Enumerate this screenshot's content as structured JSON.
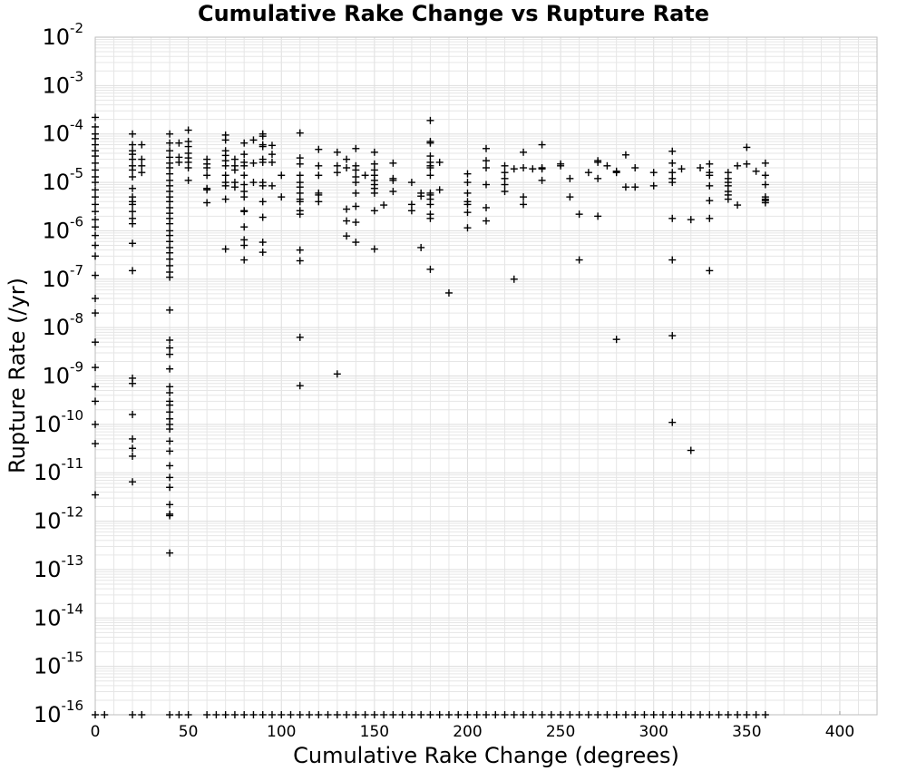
{
  "chart_data": {
    "type": "scatter",
    "title": "Cumulative Rake Change vs Rupture Rate",
    "xlabel": "Cumulative Rake Change (degrees)",
    "ylabel": "Rupture Rate (/yr)",
    "xlim": [
      0,
      420
    ],
    "ylim": [
      1e-16,
      0.01
    ],
    "y_scale": "log",
    "grid": true,
    "legend": "none",
    "marker": "plus",
    "x_ticks": [
      0,
      50,
      100,
      150,
      200,
      250,
      300,
      350,
      400
    ],
    "y_ticks": [
      {
        "base": "10",
        "exp": "-2"
      },
      {
        "base": "10",
        "exp": "-3"
      },
      {
        "base": "10",
        "exp": "-4"
      },
      {
        "base": "10",
        "exp": "-5"
      },
      {
        "base": "10",
        "exp": "-6"
      },
      {
        "base": "10",
        "exp": "-7"
      },
      {
        "base": "10",
        "exp": "-8"
      },
      {
        "base": "10",
        "exp": "-9"
      },
      {
        "base": "10",
        "exp": "-10"
      },
      {
        "base": "10",
        "exp": "-11"
      },
      {
        "base": "10",
        "exp": "-12"
      },
      {
        "base": "10",
        "exp": "-13"
      },
      {
        "base": "10",
        "exp": "-14"
      },
      {
        "base": "10",
        "exp": "-15"
      },
      {
        "base": "10",
        "exp": "-16"
      }
    ],
    "points": [
      [
        0,
        0.00022
      ],
      [
        0,
        0.00014
      ],
      [
        0,
        0.0001
      ],
      [
        0,
        8e-05
      ],
      [
        0,
        6e-05
      ],
      [
        0,
        4.5e-05
      ],
      [
        0,
        3.5e-05
      ],
      [
        0,
        2.5e-05
      ],
      [
        0,
        1.8e-05
      ],
      [
        0,
        1.3e-05
      ],
      [
        0,
        1e-05
      ],
      [
        0,
        7e-06
      ],
      [
        0,
        5e-06
      ],
      [
        0,
        3.5e-06
      ],
      [
        0,
        2.5e-06
      ],
      [
        0,
        1.7e-06
      ],
      [
        0,
        1.2e-06
      ],
      [
        0,
        8e-07
      ],
      [
        0,
        5e-07
      ],
      [
        0,
        3e-07
      ],
      [
        0,
        1.2e-07
      ],
      [
        0,
        4e-08
      ],
      [
        0,
        2e-08
      ],
      [
        0,
        5e-09
      ],
      [
        0,
        1.5e-09
      ],
      [
        0,
        6e-10
      ],
      [
        0,
        3e-10
      ],
      [
        0,
        1e-10
      ],
      [
        0,
        4e-11
      ],
      [
        0,
        3.5e-12
      ],
      [
        20,
        0.0001
      ],
      [
        20,
        6e-05
      ],
      [
        20,
        4.5e-05
      ],
      [
        20,
        3.8e-05
      ],
      [
        20,
        3e-05
      ],
      [
        20,
        2.2e-05
      ],
      [
        20,
        1.8e-05
      ],
      [
        20,
        1.3e-05
      ],
      [
        20,
        7.5e-06
      ],
      [
        20,
        5e-06
      ],
      [
        20,
        4e-06
      ],
      [
        20,
        3.5e-06
      ],
      [
        20,
        2.5e-06
      ],
      [
        20,
        1.8e-06
      ],
      [
        20,
        1.4e-06
      ],
      [
        20,
        5.5e-07
      ],
      [
        20,
        1.5e-07
      ],
      [
        20,
        9e-10
      ],
      [
        20,
        7e-10
      ],
      [
        20,
        1.6e-10
      ],
      [
        20,
        5e-11
      ],
      [
        20,
        3.2e-11
      ],
      [
        20,
        2.2e-11
      ],
      [
        20,
        6.5e-12
      ],
      [
        25,
        6e-05
      ],
      [
        25,
        3e-05
      ],
      [
        25,
        2.2e-05
      ],
      [
        25,
        1.6e-05
      ],
      [
        40,
        0.0001
      ],
      [
        40,
        6.5e-05
      ],
      [
        40,
        4.5e-05
      ],
      [
        40,
        3.3e-05
      ],
      [
        40,
        2.5e-05
      ],
      [
        40,
        2e-05
      ],
      [
        40,
        1.5e-05
      ],
      [
        40,
        1.1e-05
      ],
      [
        40,
        8.5e-06
      ],
      [
        40,
        6.5e-06
      ],
      [
        40,
        5e-06
      ],
      [
        40,
        4e-06
      ],
      [
        40,
        3e-06
      ],
      [
        40,
        2.3e-06
      ],
      [
        40,
        1.8e-06
      ],
      [
        40,
        1.4e-06
      ],
      [
        40,
        1e-06
      ],
      [
        40,
        8e-07
      ],
      [
        40,
        6e-07
      ],
      [
        40,
        4.5e-07
      ],
      [
        40,
        3.5e-07
      ],
      [
        40,
        2.6e-07
      ],
      [
        40,
        1.9e-07
      ],
      [
        40,
        1.4e-07
      ],
      [
        40,
        1.1e-07
      ],
      [
        40,
        2.3e-08
      ],
      [
        40,
        5.5e-09
      ],
      [
        40,
        3.8e-09
      ],
      [
        40,
        2.8e-09
      ],
      [
        40,
        1.4e-09
      ],
      [
        40,
        6e-10
      ],
      [
        40,
        4.5e-10
      ],
      [
        40,
        3e-10
      ],
      [
        40,
        2.5e-10
      ],
      [
        40,
        1.8e-10
      ],
      [
        40,
        1.3e-10
      ],
      [
        40,
        1e-10
      ],
      [
        40,
        8e-11
      ],
      [
        40,
        4.5e-11
      ],
      [
        40,
        2.8e-11
      ],
      [
        40,
        1.4e-11
      ],
      [
        40,
        8e-12
      ],
      [
        40,
        5e-12
      ],
      [
        40,
        2.2e-12
      ],
      [
        40,
        1.4e-12
      ],
      [
        40,
        1.3e-12
      ],
      [
        40,
        2.2e-13
      ],
      [
        45,
        6.5e-05
      ],
      [
        45,
        3.3e-05
      ],
      [
        45,
        2.6e-05
      ],
      [
        50,
        0.00012
      ],
      [
        50,
        7e-05
      ],
      [
        50,
        5.5e-05
      ],
      [
        50,
        4e-05
      ],
      [
        50,
        3.2e-05
      ],
      [
        50,
        2.6e-05
      ],
      [
        50,
        2e-05
      ],
      [
        50,
        1.1e-05
      ],
      [
        60,
        3e-05
      ],
      [
        60,
        2.4e-05
      ],
      [
        60,
        2e-05
      ],
      [
        60,
        1.4e-05
      ],
      [
        60,
        7.5e-06
      ],
      [
        60,
        7e-06
      ],
      [
        60,
        3.8e-06
      ],
      [
        70,
        9.5e-05
      ],
      [
        70,
        7.5e-05
      ],
      [
        70,
        4.5e-05
      ],
      [
        70,
        3.6e-05
      ],
      [
        70,
        2.8e-05
      ],
      [
        70,
        2.2e-05
      ],
      [
        70,
        1.4e-05
      ],
      [
        70,
        1e-05
      ],
      [
        70,
        8.5e-06
      ],
      [
        70,
        4.5e-06
      ],
      [
        70,
        4.2e-07
      ],
      [
        75,
        3e-05
      ],
      [
        75,
        2.2e-05
      ],
      [
        75,
        1.8e-05
      ],
      [
        75,
        1e-05
      ],
      [
        75,
        8e-06
      ],
      [
        80,
        6.5e-05
      ],
      [
        80,
        3.8e-05
      ],
      [
        80,
        2.6e-05
      ],
      [
        80,
        2.2e-05
      ],
      [
        80,
        1.4e-05
      ],
      [
        80,
        9e-06
      ],
      [
        80,
        6.5e-06
      ],
      [
        80,
        5e-06
      ],
      [
        80,
        2.6e-06
      ],
      [
        80,
        2.5e-06
      ],
      [
        80,
        1.2e-06
      ],
      [
        80,
        6.5e-07
      ],
      [
        80,
        5e-07
      ],
      [
        80,
        2.5e-07
      ],
      [
        85,
        7.5e-05
      ],
      [
        85,
        2.5e-05
      ],
      [
        85,
        1e-05
      ],
      [
        90,
        0.0001
      ],
      [
        90,
        9e-05
      ],
      [
        90,
        6e-05
      ],
      [
        90,
        5.5e-05
      ],
      [
        90,
        3e-05
      ],
      [
        90,
        2.6e-05
      ],
      [
        90,
        1e-05
      ],
      [
        90,
        8.5e-06
      ],
      [
        90,
        4e-06
      ],
      [
        90,
        1.9e-06
      ],
      [
        90,
        5.8e-07
      ],
      [
        90,
        3.6e-07
      ],
      [
        95,
        5.8e-05
      ],
      [
        95,
        3.8e-05
      ],
      [
        95,
        2.6e-05
      ],
      [
        95,
        8.5e-06
      ],
      [
        100,
        1.4e-05
      ],
      [
        100,
        5e-06
      ],
      [
        110,
        0.000105
      ],
      [
        110,
        3.2e-05
      ],
      [
        110,
        2.4e-05
      ],
      [
        110,
        1.4e-05
      ],
      [
        110,
        1e-05
      ],
      [
        110,
        8e-06
      ],
      [
        110,
        6e-06
      ],
      [
        110,
        4.5e-06
      ],
      [
        110,
        4e-06
      ],
      [
        110,
        2.6e-06
      ],
      [
        110,
        2.2e-06
      ],
      [
        110,
        4e-07
      ],
      [
        110,
        2.4e-07
      ],
      [
        110,
        6.3e-09
      ],
      [
        110,
        6.3e-10
      ],
      [
        120,
        4.8e-05
      ],
      [
        120,
        2.2e-05
      ],
      [
        120,
        1.4e-05
      ],
      [
        120,
        6e-06
      ],
      [
        120,
        5.5e-06
      ],
      [
        120,
        4e-06
      ],
      [
        130,
        4.2e-05
      ],
      [
        130,
        2.2e-05
      ],
      [
        130,
        1.6e-05
      ],
      [
        130,
        1.1e-09
      ],
      [
        135,
        3e-05
      ],
      [
        135,
        2e-05
      ],
      [
        135,
        2.8e-06
      ],
      [
        135,
        1.6e-06
      ],
      [
        135,
        7.8e-07
      ],
      [
        140,
        5e-05
      ],
      [
        140,
        2.2e-05
      ],
      [
        140,
        1.8e-05
      ],
      [
        140,
        1.3e-05
      ],
      [
        140,
        1e-05
      ],
      [
        140,
        6e-06
      ],
      [
        140,
        3.2e-06
      ],
      [
        140,
        1.5e-06
      ],
      [
        140,
        5.8e-07
      ],
      [
        145,
        1.4e-05
      ],
      [
        150,
        4.2e-05
      ],
      [
        150,
        2.4e-05
      ],
      [
        150,
        1.8e-05
      ],
      [
        150,
        1.4e-05
      ],
      [
        150,
        1.1e-05
      ],
      [
        150,
        9e-06
      ],
      [
        150,
        7.5e-06
      ],
      [
        150,
        6e-06
      ],
      [
        150,
        2.6e-06
      ],
      [
        150,
        4.2e-07
      ],
      [
        155,
        3.4e-06
      ],
      [
        160,
        2.5e-05
      ],
      [
        160,
        1.2e-05
      ],
      [
        160,
        1.1e-05
      ],
      [
        160,
        6.5e-06
      ],
      [
        170,
        1e-05
      ],
      [
        170,
        3.5e-06
      ],
      [
        170,
        2.6e-06
      ],
      [
        175,
        6e-06
      ],
      [
        175,
        5.2e-06
      ],
      [
        175,
        4.5e-07
      ],
      [
        180,
        0.00019
      ],
      [
        180,
        7e-05
      ],
      [
        180,
        6.5e-05
      ],
      [
        180,
        3.5e-05
      ],
      [
        180,
        2.6e-05
      ],
      [
        180,
        2.2e-05
      ],
      [
        180,
        2e-05
      ],
      [
        180,
        1.4e-05
      ],
      [
        180,
        6e-06
      ],
      [
        180,
        5.5e-06
      ],
      [
        180,
        4.5e-06
      ],
      [
        180,
        3.5e-06
      ],
      [
        180,
        2.2e-06
      ],
      [
        180,
        1.8e-06
      ],
      [
        180,
        1.6e-07
      ],
      [
        185,
        2.6e-05
      ],
      [
        185,
        7e-06
      ],
      [
        190,
        5.2e-08
      ],
      [
        200,
        1.5e-05
      ],
      [
        200,
        1e-05
      ],
      [
        200,
        6e-06
      ],
      [
        200,
        4e-06
      ],
      [
        200,
        3.5e-06
      ],
      [
        200,
        2.4e-06
      ],
      [
        200,
        1.15e-06
      ],
      [
        210,
        5e-05
      ],
      [
        210,
        2.8e-05
      ],
      [
        210,
        2e-05
      ],
      [
        210,
        9e-06
      ],
      [
        210,
        3e-06
      ],
      [
        210,
        1.6e-06
      ],
      [
        220,
        2.2e-05
      ],
      [
        220,
        1.6e-05
      ],
      [
        220,
        1.2e-05
      ],
      [
        220,
        9e-06
      ],
      [
        220,
        6.5e-06
      ],
      [
        225,
        1.9e-05
      ],
      [
        225,
        1e-07
      ],
      [
        230,
        4.2e-05
      ],
      [
        230,
        2e-05
      ],
      [
        230,
        5e-06
      ],
      [
        230,
        3.5e-06
      ],
      [
        235,
        1.9e-05
      ],
      [
        240,
        6e-05
      ],
      [
        240,
        2e-05
      ],
      [
        240,
        1.9e-05
      ],
      [
        240,
        1.1e-05
      ],
      [
        250,
        2.4e-05
      ],
      [
        250,
        2.2e-05
      ],
      [
        255,
        1.2e-05
      ],
      [
        255,
        5e-06
      ],
      [
        260,
        2.2e-06
      ],
      [
        260,
        2.5e-07
      ],
      [
        265,
        1.6e-05
      ],
      [
        270,
        2.8e-05
      ],
      [
        270,
        2.6e-05
      ],
      [
        270,
        1.2e-05
      ],
      [
        270,
        2e-06
      ],
      [
        275,
        2.2e-05
      ],
      [
        280,
        1.7e-05
      ],
      [
        280,
        1.6e-05
      ],
      [
        280,
        5.7e-09
      ],
      [
        285,
        3.7e-05
      ],
      [
        285,
        8e-06
      ],
      [
        290,
        2e-05
      ],
      [
        290,
        8e-06
      ],
      [
        300,
        1.6e-05
      ],
      [
        300,
        8.5e-06
      ],
      [
        310,
        4.4e-05
      ],
      [
        310,
        2.5e-05
      ],
      [
        310,
        1.6e-05
      ],
      [
        310,
        1.2e-05
      ],
      [
        310,
        1e-05
      ],
      [
        310,
        1.8e-06
      ],
      [
        310,
        2.5e-07
      ],
      [
        310,
        6.8e-09
      ],
      [
        310,
        1.1e-10
      ],
      [
        315,
        1.9e-05
      ],
      [
        320,
        1.7e-06
      ],
      [
        320,
        2.9e-11
      ],
      [
        325,
        2e-05
      ],
      [
        330,
        2.4e-05
      ],
      [
        330,
        1.6e-05
      ],
      [
        330,
        1.4e-05
      ],
      [
        330,
        8.5e-06
      ],
      [
        330,
        4.2e-06
      ],
      [
        330,
        1.8e-06
      ],
      [
        330,
        1.5e-07
      ],
      [
        340,
        1.6e-05
      ],
      [
        340,
        1.2e-05
      ],
      [
        340,
        1e-05
      ],
      [
        340,
        8.5e-06
      ],
      [
        340,
        6.5e-06
      ],
      [
        340,
        5.5e-06
      ],
      [
        340,
        4.5e-06
      ],
      [
        345,
        2.2e-05
      ],
      [
        345,
        3.4e-06
      ],
      [
        350,
        5.3e-05
      ],
      [
        350,
        2.4e-05
      ],
      [
        355,
        1.7e-05
      ],
      [
        360,
        2.5e-05
      ],
      [
        360,
        1.4e-05
      ],
      [
        360,
        9e-06
      ],
      [
        360,
        5e-06
      ],
      [
        360,
        4.5e-06
      ],
      [
        360,
        4.2e-06
      ],
      [
        360,
        3.8e-06
      ],
      [
        0,
        1e-16
      ],
      [
        5,
        1e-16
      ],
      [
        20,
        1e-16
      ],
      [
        25,
        1e-16
      ],
      [
        40,
        1e-16
      ],
      [
        45,
        1e-16
      ],
      [
        50,
        1e-16
      ],
      [
        60,
        1e-16
      ],
      [
        65,
        1e-16
      ],
      [
        70,
        1e-16
      ],
      [
        75,
        1e-16
      ],
      [
        80,
        1e-16
      ],
      [
        85,
        1e-16
      ],
      [
        90,
        1e-16
      ],
      [
        95,
        1e-16
      ],
      [
        100,
        1e-16
      ],
      [
        105,
        1e-16
      ],
      [
        110,
        1e-16
      ],
      [
        115,
        1e-16
      ],
      [
        120,
        1e-16
      ],
      [
        125,
        1e-16
      ],
      [
        130,
        1e-16
      ],
      [
        135,
        1e-16
      ],
      [
        140,
        1e-16
      ],
      [
        145,
        1e-16
      ],
      [
        150,
        1e-16
      ],
      [
        155,
        1e-16
      ],
      [
        160,
        1e-16
      ],
      [
        165,
        1e-16
      ],
      [
        170,
        1e-16
      ],
      [
        175,
        1e-16
      ],
      [
        180,
        1e-16
      ],
      [
        185,
        1e-16
      ],
      [
        190,
        1e-16
      ],
      [
        195,
        1e-16
      ],
      [
        200,
        1e-16
      ],
      [
        205,
        1e-16
      ],
      [
        210,
        1e-16
      ],
      [
        215,
        1e-16
      ],
      [
        220,
        1e-16
      ],
      [
        225,
        1e-16
      ],
      [
        230,
        1e-16
      ],
      [
        235,
        1e-16
      ],
      [
        240,
        1e-16
      ],
      [
        245,
        1e-16
      ],
      [
        250,
        1e-16
      ],
      [
        255,
        1e-16
      ],
      [
        260,
        1e-16
      ],
      [
        265,
        1e-16
      ],
      [
        270,
        1e-16
      ],
      [
        275,
        1e-16
      ],
      [
        280,
        1e-16
      ],
      [
        285,
        1e-16
      ],
      [
        290,
        1e-16
      ],
      [
        295,
        1e-16
      ],
      [
        300,
        1e-16
      ],
      [
        305,
        1e-16
      ],
      [
        310,
        1e-16
      ],
      [
        315,
        1e-16
      ],
      [
        320,
        1e-16
      ],
      [
        325,
        1e-16
      ],
      [
        330,
        1e-16
      ],
      [
        335,
        1e-16
      ],
      [
        340,
        1e-16
      ],
      [
        345,
        1e-16
      ],
      [
        350,
        1e-16
      ],
      [
        355,
        1e-16
      ],
      [
        360,
        1e-16
      ]
    ]
  }
}
